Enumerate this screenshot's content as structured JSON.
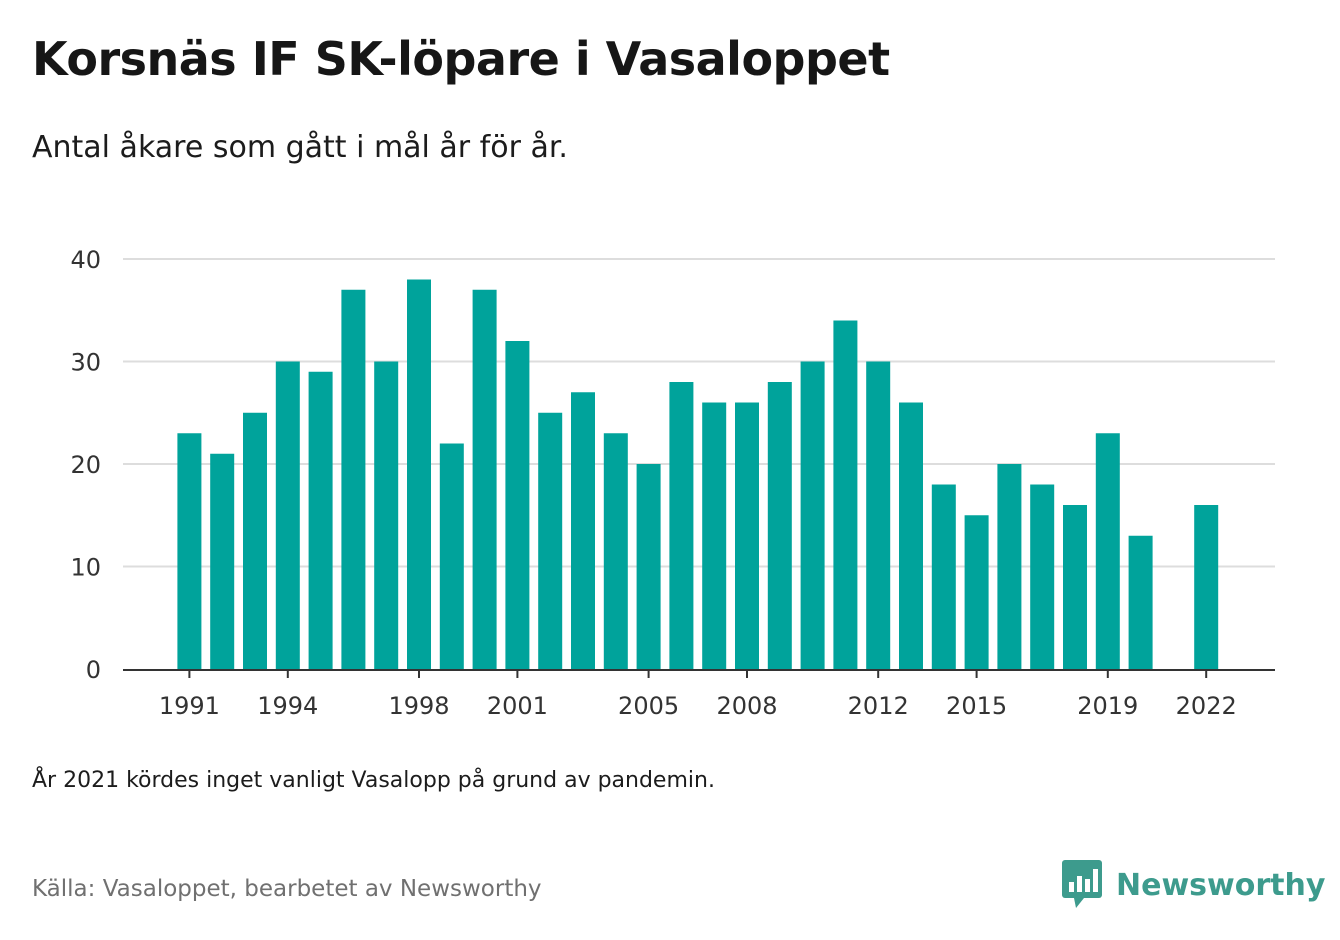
{
  "header": {
    "title": "Korsnäs IF SK-löpare i Vasaloppet",
    "subtitle": "Antal åkare som gått i mål år för år."
  },
  "footer": {
    "note": "År 2021 kördes inget vanligt Vasalopp på grund av pandemin.",
    "source": "Källa: Vasaloppet, bearbetet av Newsworthy",
    "brand": "Newsworthy",
    "brand_icon": "bar-chart-speech-bubble-icon"
  },
  "colors": {
    "bar": "#00a39b",
    "grid": "#dddddd",
    "axis": "#333333",
    "brand": "#3d9b8d"
  },
  "chart_data": {
    "type": "bar",
    "x": [
      1991,
      1992,
      1993,
      1994,
      1995,
      1996,
      1997,
      1998,
      1999,
      2000,
      2001,
      2002,
      2003,
      2004,
      2005,
      2006,
      2007,
      2008,
      2009,
      2010,
      2011,
      2012,
      2013,
      2014,
      2015,
      2016,
      2017,
      2018,
      2019,
      2020,
      2021,
      2022
    ],
    "values": [
      23,
      21,
      25,
      30,
      29,
      37,
      30,
      38,
      22,
      37,
      32,
      25,
      27,
      23,
      20,
      28,
      26,
      26,
      28,
      30,
      34,
      30,
      26,
      18,
      15,
      20,
      18,
      16,
      23,
      13,
      null,
      16
    ],
    "x_tick_labels": [
      1991,
      1994,
      1998,
      2001,
      2005,
      2008,
      2012,
      2015,
      2019,
      2022
    ],
    "y_ticks": [
      0,
      10,
      20,
      30,
      40
    ],
    "ylim": [
      0,
      40
    ],
    "grid": true,
    "legend": "none"
  }
}
